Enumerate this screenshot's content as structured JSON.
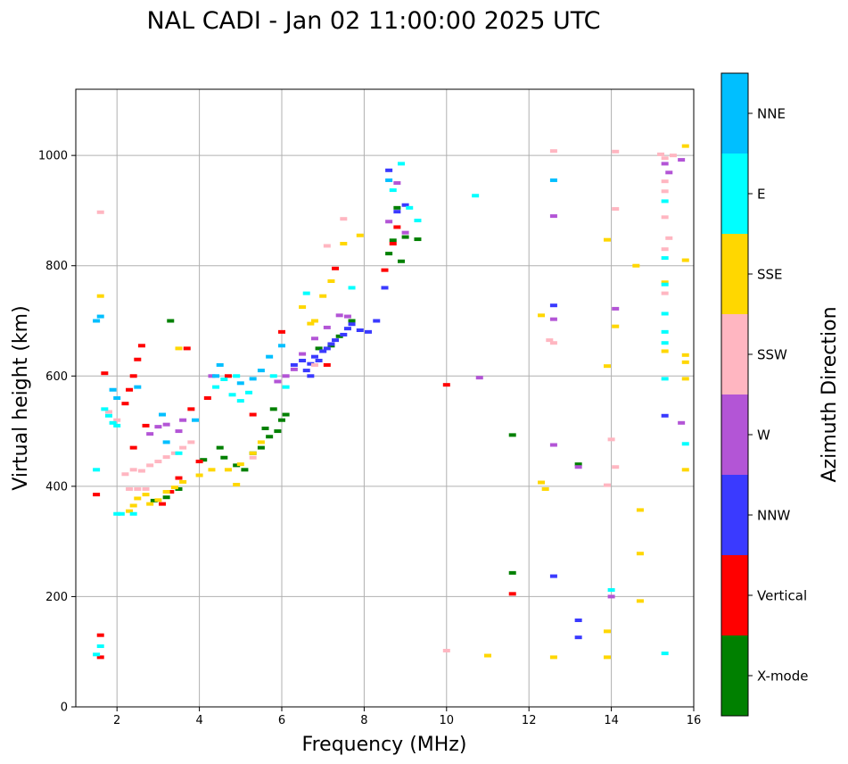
{
  "chart_data": {
    "type": "scatter",
    "title": "NAL CADI - Jan 02 11:00:00 2025 UTC",
    "xlabel": "Frequency (MHz)",
    "ylabel": "Virtual height (km)",
    "xlim": [
      1,
      16
    ],
    "ylim": [
      0,
      1120
    ],
    "xticks": [
      2,
      4,
      6,
      8,
      10,
      12,
      14,
      16
    ],
    "yticks": [
      0,
      200,
      400,
      600,
      800,
      1000
    ],
    "grid": true,
    "colorbar": {
      "label": "Azimuth Direction",
      "categories": [
        "X-mode",
        "Vertical",
        "NNW",
        "W",
        "SSW",
        "SSE",
        "E",
        "NNE"
      ],
      "colors": [
        "#008000",
        "#ff0000",
        "#3a3aff",
        "#b355d6",
        "#ffb6c1",
        "#ffd700",
        "#00ffff",
        "#00bfff"
      ]
    },
    "series": [
      {
        "name": "X-mode",
        "points": [
          [
            2.9,
            374
          ],
          [
            3.2,
            380
          ],
          [
            3.5,
            395
          ],
          [
            4.1,
            448
          ],
          [
            4.6,
            452
          ],
          [
            4.9,
            438
          ],
          [
            5.1,
            430
          ],
          [
            5.3,
            460
          ],
          [
            5.5,
            470
          ],
          [
            5.7,
            490
          ],
          [
            5.9,
            500
          ],
          [
            6.0,
            520
          ],
          [
            6.1,
            530
          ],
          [
            6.9,
            650
          ],
          [
            7.2,
            655
          ],
          [
            7.4,
            672
          ],
          [
            7.7,
            700
          ],
          [
            8.6,
            822
          ],
          [
            8.7,
            846
          ],
          [
            8.8,
            905
          ],
          [
            8.9,
            808
          ],
          [
            9.0,
            852
          ],
          [
            9.3,
            848
          ],
          [
            11.6,
            243
          ],
          [
            11.6,
            493
          ],
          [
            13.2,
            440
          ],
          [
            5.6,
            505
          ],
          [
            5.8,
            540
          ],
          [
            4.5,
            470
          ],
          [
            3.3,
            700
          ]
        ]
      },
      {
        "name": "Vertical",
        "points": [
          [
            1.6,
            90
          ],
          [
            1.6,
            130
          ],
          [
            1.5,
            385
          ],
          [
            1.7,
            605
          ],
          [
            2.3,
            575
          ],
          [
            2.4,
            600
          ],
          [
            2.5,
            630
          ],
          [
            2.6,
            655
          ],
          [
            3.1,
            368
          ],
          [
            3.3,
            390
          ],
          [
            3.5,
            415
          ],
          [
            3.7,
            650
          ],
          [
            3.8,
            540
          ],
          [
            4.2,
            560
          ],
          [
            4.7,
            600
          ],
          [
            5.3,
            530
          ],
          [
            6.0,
            680
          ],
          [
            7.1,
            620
          ],
          [
            7.3,
            795
          ],
          [
            8.5,
            792
          ],
          [
            8.7,
            840
          ],
          [
            8.8,
            870
          ],
          [
            10.0,
            584
          ],
          [
            11.6,
            205
          ],
          [
            2.2,
            550
          ],
          [
            2.4,
            470
          ],
          [
            4.0,
            445
          ],
          [
            2.7,
            510
          ]
        ]
      },
      {
        "name": "NNW",
        "points": [
          [
            6.3,
            620
          ],
          [
            6.5,
            628
          ],
          [
            6.6,
            610
          ],
          [
            6.7,
            622
          ],
          [
            6.8,
            635
          ],
          [
            6.9,
            628
          ],
          [
            7.0,
            645
          ],
          [
            7.1,
            650
          ],
          [
            7.2,
            658
          ],
          [
            7.3,
            665
          ],
          [
            7.5,
            675
          ],
          [
            7.6,
            686
          ],
          [
            7.7,
            694
          ],
          [
            7.9,
            683
          ],
          [
            8.1,
            680
          ],
          [
            8.3,
            700
          ],
          [
            8.5,
            760
          ],
          [
            8.6,
            973
          ],
          [
            8.8,
            898
          ],
          [
            9.0,
            910
          ],
          [
            12.6,
            728
          ],
          [
            12.6,
            237
          ],
          [
            13.2,
            157
          ],
          [
            13.2,
            126
          ],
          [
            15.3,
            528
          ],
          [
            6.7,
            600
          ]
        ]
      },
      {
        "name": "W",
        "points": [
          [
            2.8,
            495
          ],
          [
            3.0,
            508
          ],
          [
            3.2,
            512
          ],
          [
            3.5,
            500
          ],
          [
            3.6,
            520
          ],
          [
            6.3,
            612
          ],
          [
            6.5,
            640
          ],
          [
            6.8,
            668
          ],
          [
            7.1,
            688
          ],
          [
            7.4,
            710
          ],
          [
            7.6,
            708
          ],
          [
            8.6,
            880
          ],
          [
            9.0,
            860
          ],
          [
            10.8,
            597
          ],
          [
            12.6,
            890
          ],
          [
            12.6,
            703
          ],
          [
            12.6,
            475
          ],
          [
            14.0,
            200
          ],
          [
            14.1,
            722
          ],
          [
            15.3,
            985
          ],
          [
            15.4,
            969
          ],
          [
            15.7,
            992
          ],
          [
            15.7,
            515
          ],
          [
            5.9,
            590
          ],
          [
            6.1,
            600
          ],
          [
            4.3,
            600
          ],
          [
            8.8,
            950
          ],
          [
            13.2,
            435
          ]
        ]
      },
      {
        "name": "SSW",
        "points": [
          [
            2.2,
            422
          ],
          [
            2.4,
            430
          ],
          [
            2.6,
            428
          ],
          [
            2.8,
            438
          ],
          [
            3.0,
            445
          ],
          [
            3.2,
            453
          ],
          [
            3.4,
            460
          ],
          [
            3.6,
            470
          ],
          [
            3.8,
            480
          ],
          [
            2.3,
            395
          ],
          [
            2.5,
            395
          ],
          [
            2.7,
            395
          ],
          [
            1.6,
            897
          ],
          [
            7.1,
            836
          ],
          [
            7.5,
            885
          ],
          [
            10.0,
            102
          ],
          [
            12.6,
            1008
          ],
          [
            12.6,
            660
          ],
          [
            12.5,
            665
          ],
          [
            13.9,
            402
          ],
          [
            14.0,
            485
          ],
          [
            14.1,
            435
          ],
          [
            14.1,
            903
          ],
          [
            14.1,
            1007
          ],
          [
            15.2,
            1002
          ],
          [
            15.3,
            995
          ],
          [
            15.3,
            953
          ],
          [
            15.3,
            935
          ],
          [
            15.3,
            888
          ],
          [
            15.3,
            830
          ],
          [
            15.3,
            750
          ],
          [
            15.4,
            850
          ],
          [
            15.5,
            1000
          ],
          [
            2.0,
            520
          ],
          [
            1.8,
            535
          ],
          [
            5.3,
            452
          ],
          [
            6.8,
            620
          ]
        ]
      },
      {
        "name": "SSE",
        "points": [
          [
            2.3,
            355
          ],
          [
            2.4,
            365
          ],
          [
            2.5,
            378
          ],
          [
            2.7,
            385
          ],
          [
            2.8,
            368
          ],
          [
            3.0,
            375
          ],
          [
            3.2,
            390
          ],
          [
            3.4,
            398
          ],
          [
            3.6,
            408
          ],
          [
            4.0,
            420
          ],
          [
            4.3,
            430
          ],
          [
            4.7,
            430
          ],
          [
            4.9,
            403
          ],
          [
            5.0,
            440
          ],
          [
            5.3,
            460
          ],
          [
            5.5,
            480
          ],
          [
            6.5,
            725
          ],
          [
            6.7,
            695
          ],
          [
            6.8,
            700
          ],
          [
            7.0,
            745
          ],
          [
            7.2,
            772
          ],
          [
            7.5,
            840
          ],
          [
            7.9,
            855
          ],
          [
            12.3,
            710
          ],
          [
            12.3,
            407
          ],
          [
            12.4,
            395
          ],
          [
            12.6,
            90
          ],
          [
            13.9,
            847
          ],
          [
            13.9,
            618
          ],
          [
            13.9,
            137
          ],
          [
            13.9,
            90
          ],
          [
            14.1,
            690
          ],
          [
            14.6,
            800
          ],
          [
            14.7,
            357
          ],
          [
            14.7,
            278
          ],
          [
            14.7,
            192
          ],
          [
            15.3,
            770
          ],
          [
            15.3,
            645
          ],
          [
            15.8,
            1017
          ],
          [
            15.8,
            810
          ],
          [
            15.8,
            638
          ],
          [
            15.8,
            625
          ],
          [
            15.8,
            595
          ],
          [
            15.8,
            430
          ],
          [
            11.0,
            93
          ],
          [
            3.5,
            650
          ],
          [
            1.6,
            745
          ]
        ]
      },
      {
        "name": "E",
        "points": [
          [
            1.5,
            95
          ],
          [
            1.6,
            110
          ],
          [
            1.5,
            430
          ],
          [
            1.7,
            540
          ],
          [
            1.8,
            528
          ],
          [
            1.9,
            515
          ],
          [
            2.0,
            510
          ],
          [
            2.1,
            350
          ],
          [
            2.4,
            350
          ],
          [
            3.5,
            460
          ],
          [
            4.4,
            580
          ],
          [
            4.6,
            594
          ],
          [
            4.8,
            566
          ],
          [
            5.0,
            555
          ],
          [
            5.2,
            570
          ],
          [
            5.8,
            600
          ],
          [
            6.1,
            580
          ],
          [
            6.6,
            750
          ],
          [
            7.7,
            760
          ],
          [
            8.7,
            937
          ],
          [
            8.9,
            985
          ],
          [
            9.1,
            905
          ],
          [
            9.3,
            882
          ],
          [
            10.7,
            927
          ],
          [
            14.0,
            212
          ],
          [
            15.3,
            917
          ],
          [
            15.3,
            814
          ],
          [
            15.3,
            766
          ],
          [
            15.3,
            713
          ],
          [
            15.3,
            680
          ],
          [
            15.3,
            660
          ],
          [
            15.3,
            595
          ],
          [
            15.3,
            97
          ],
          [
            15.8,
            477
          ],
          [
            2.0,
            350
          ],
          [
            4.9,
            600
          ]
        ]
      },
      {
        "name": "NNE",
        "points": [
          [
            1.6,
            708
          ],
          [
            1.9,
            575
          ],
          [
            2.0,
            560
          ],
          [
            2.5,
            580
          ],
          [
            3.1,
            530
          ],
          [
            3.2,
            480
          ],
          [
            4.5,
            620
          ],
          [
            5.0,
            587
          ],
          [
            5.3,
            595
          ],
          [
            5.5,
            610
          ],
          [
            5.7,
            635
          ],
          [
            6.0,
            655
          ],
          [
            8.6,
            955
          ],
          [
            12.6,
            955
          ],
          [
            1.5,
            700
          ],
          [
            3.9,
            520
          ],
          [
            4.4,
            600
          ]
        ]
      }
    ]
  }
}
